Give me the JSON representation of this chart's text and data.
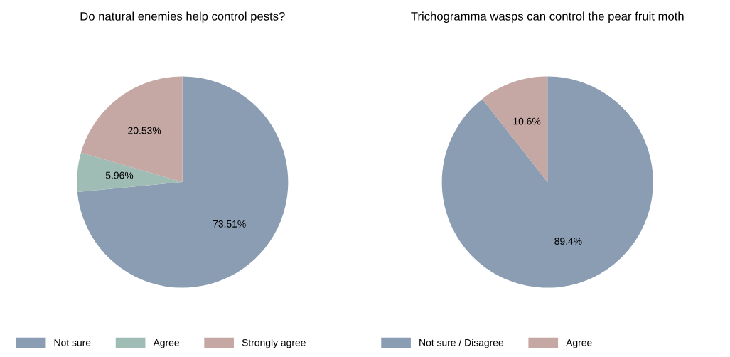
{
  "chart_data": [
    {
      "type": "pie",
      "title": "Do natural enemies help control pests?",
      "categories": [
        "Not sure",
        "Agree",
        "Strongly agree"
      ],
      "values": [
        73.51,
        5.96,
        20.53
      ],
      "colors": [
        "#8a9db3",
        "#9fbcb5",
        "#c5a8a3"
      ],
      "value_labels": [
        "73.51%",
        "5.96%",
        "20.53%"
      ],
      "legend": "bottom"
    },
    {
      "type": "pie",
      "title": "Trichogramma wasps can control the pear fruit moth",
      "categories": [
        "Not sure / Disagree",
        "Agree"
      ],
      "values": [
        89.4,
        10.6
      ],
      "colors": [
        "#8a9db3",
        "#c5a8a3"
      ],
      "value_labels": [
        "89.4%",
        "10.6%"
      ],
      "legend": "bottom"
    }
  ]
}
